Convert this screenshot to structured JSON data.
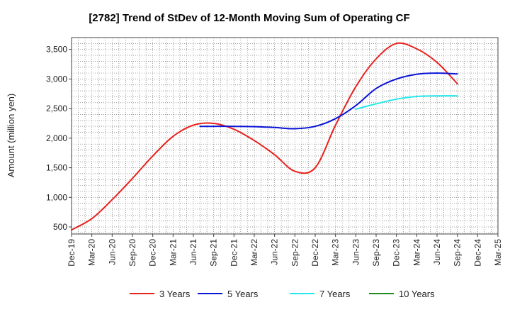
{
  "chart_data": {
    "type": "line",
    "title": "[2782]  Trend of StDev of 12-Month Moving Sum of Operating CF",
    "ylabel": "Amount (million yen)",
    "xlabel": "",
    "ylim": [
      380,
      3700
    ],
    "yticks": [
      500,
      1000,
      1500,
      2000,
      2500,
      3000,
      3500
    ],
    "ytick_labels": [
      "500",
      "1,000",
      "1,500",
      "2,000",
      "2,500",
      "3,000",
      "3,500"
    ],
    "x_tick_labels": [
      "Dec-19",
      "Mar-20",
      "Jun-20",
      "Sep-20",
      "Dec-20",
      "Mar-21",
      "Jun-21",
      "Sep-21",
      "Dec-21",
      "Mar-22",
      "Jun-22",
      "Sep-22",
      "Dec-22",
      "Mar-23",
      "Jun-23",
      "Sep-23",
      "Dec-23",
      "Mar-24",
      "Jun-24",
      "Sep-24",
      "Dec-24",
      "Mar-25"
    ],
    "grid": true,
    "legend_position": "bottom",
    "series": [
      {
        "name": "3 Years",
        "color": "#e8211d",
        "points": [
          [
            0,
            450
          ],
          [
            1,
            640
          ],
          [
            2,
            960
          ],
          [
            3,
            1320
          ],
          [
            4,
            1700
          ],
          [
            5,
            2030
          ],
          [
            6,
            2220
          ],
          [
            7,
            2250
          ],
          [
            8,
            2150
          ],
          [
            9,
            1960
          ],
          [
            10,
            1720
          ],
          [
            11,
            1440
          ],
          [
            12,
            1500
          ],
          [
            13,
            2220
          ],
          [
            14,
            2870
          ],
          [
            15,
            3340
          ],
          [
            16,
            3600
          ],
          [
            17,
            3510
          ],
          [
            18,
            3280
          ],
          [
            19,
            2920
          ]
        ]
      },
      {
        "name": "5 Years",
        "color": "#0a14d8",
        "points": [
          [
            6.33,
            2200
          ],
          [
            7,
            2200
          ],
          [
            8,
            2200
          ],
          [
            9,
            2195
          ],
          [
            10,
            2180
          ],
          [
            11,
            2160
          ],
          [
            12,
            2200
          ],
          [
            13,
            2330
          ],
          [
            14,
            2550
          ],
          [
            15,
            2840
          ],
          [
            16,
            3000
          ],
          [
            17,
            3080
          ],
          [
            18,
            3100
          ],
          [
            19,
            3085
          ]
        ]
      },
      {
        "name": "7 Years",
        "color": "#26e8ec",
        "points": [
          [
            14,
            2490
          ],
          [
            15,
            2580
          ],
          [
            16,
            2660
          ],
          [
            17,
            2705
          ],
          [
            18,
            2715
          ],
          [
            19,
            2715
          ]
        ]
      },
      {
        "name": "10 Years",
        "color": "#1e8c1e",
        "points": []
      }
    ]
  }
}
